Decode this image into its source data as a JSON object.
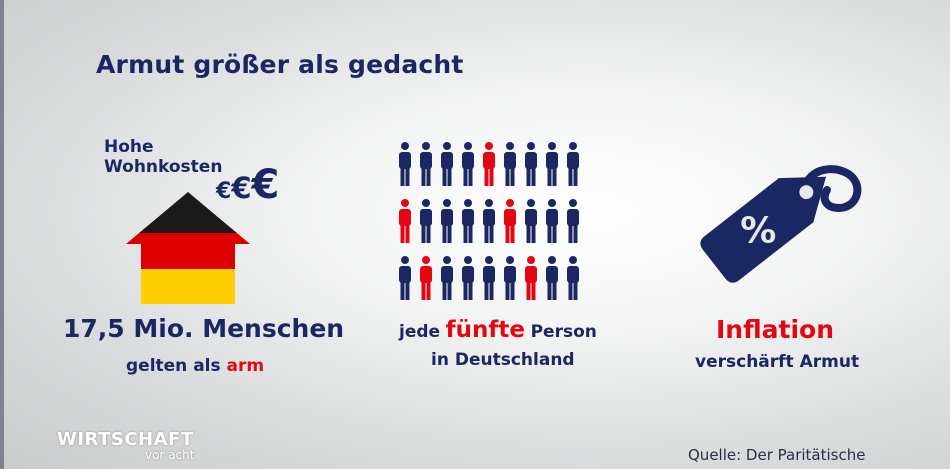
{
  "title": "Armut größer als gedacht",
  "housing": {
    "caption": "Hohe Wohnkosten",
    "currency_symbol": "€",
    "count_value": "17,5 Mio. Menschen",
    "status_prefix": "gelten als",
    "status_highlight": "arm"
  },
  "people": {
    "prefix": "jede",
    "highlight": "fünfte",
    "suffix": "Person",
    "line2": "in Deutschland",
    "rows": [
      [
        0,
        0,
        0,
        0,
        1,
        0,
        0,
        0,
        0
      ],
      [
        1,
        0,
        0,
        0,
        0,
        1,
        0,
        0,
        0
      ],
      [
        0,
        1,
        0,
        0,
        0,
        0,
        1,
        0,
        0
      ]
    ]
  },
  "inflation": {
    "title": "Inflation",
    "subtitle": "verschärft Armut",
    "tag_symbol": "%"
  },
  "logo": {
    "main": "WIRTSCHAFT",
    "sub": "vor acht"
  },
  "source": "Quelle: Der Paritätische",
  "colors": {
    "navy": "#1b2763",
    "red": "#e30613",
    "flag_black": "#1a1a1a",
    "flag_red": "#dd0000",
    "flag_gold": "#ffce00"
  }
}
